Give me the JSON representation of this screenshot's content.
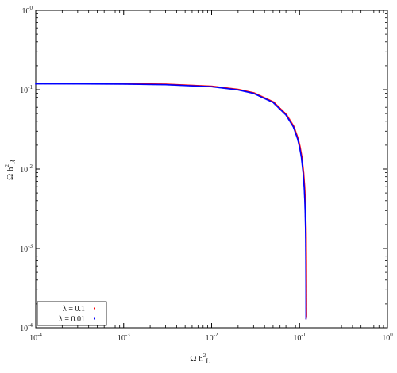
{
  "chart_data": {
    "type": "scatter",
    "title": "",
    "xlabel": "Ω h²L",
    "ylabel": "Ω h²R",
    "x_scale": "log",
    "y_scale": "log",
    "xlim": [
      0.0001,
      1
    ],
    "ylim": [
      0.0001,
      1
    ],
    "grid": false,
    "legend_placement": "bottom-left",
    "x_tick_labels": [
      {
        "base": "10",
        "exp": "-4"
      },
      {
        "base": "10",
        "exp": "-3"
      },
      {
        "base": "10",
        "exp": "-2"
      },
      {
        "base": "10",
        "exp": "-1"
      },
      {
        "base": "10",
        "exp": "0"
      }
    ],
    "y_tick_labels": [
      {
        "base": "10",
        "exp": "-4"
      },
      {
        "base": "10",
        "exp": "-3"
      },
      {
        "base": "10",
        "exp": "-2"
      },
      {
        "base": "10",
        "exp": "-1"
      },
      {
        "base": "10",
        "exp": "0"
      }
    ],
    "series": [
      {
        "name": "λ = 0.1",
        "color": "#ff0000",
        "x": [
          0.0001,
          0.0003,
          0.001,
          0.003,
          0.01,
          0.02,
          0.03,
          0.05,
          0.07,
          0.085,
          0.095,
          0.1,
          0.105,
          0.11,
          0.113,
          0.115,
          0.116,
          0.117,
          0.1175,
          0.118,
          0.1183,
          0.1185
        ],
        "y": [
          0.1186,
          0.1184,
          0.1177,
          0.1157,
          0.109,
          0.0993,
          0.0898,
          0.069,
          0.048,
          0.034,
          0.024,
          0.019,
          0.014,
          0.0088,
          0.0058,
          0.0038,
          0.0028,
          0.0018,
          0.0013,
          0.0007,
          0.0003,
          0.00013
        ]
      },
      {
        "name": "λ = 0.01",
        "color": "#0000ff",
        "x": [
          0.0001,
          0.0003,
          0.001,
          0.003,
          0.01,
          0.02,
          0.03,
          0.05,
          0.07,
          0.085,
          0.095,
          0.1,
          0.105,
          0.11,
          0.113,
          0.115,
          0.116,
          0.117,
          0.1175,
          0.118,
          0.1183,
          0.1185
        ],
        "y": [
          0.1186,
          0.1184,
          0.1177,
          0.1157,
          0.109,
          0.0993,
          0.0898,
          0.069,
          0.048,
          0.034,
          0.024,
          0.019,
          0.014,
          0.0088,
          0.0058,
          0.0038,
          0.0028,
          0.0018,
          0.0013,
          0.0007,
          0.0003,
          0.00013
        ]
      }
    ]
  }
}
